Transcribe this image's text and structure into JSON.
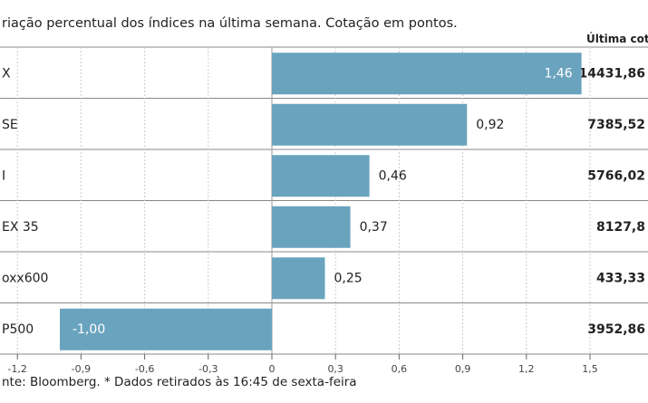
{
  "chart_data": {
    "type": "bar",
    "orientation": "horizontal",
    "title": "riação percentual dos índices na última semana. Cotação em pontos.",
    "last_quote_header": "Última cotaç",
    "categories": [
      "X",
      "SE",
      "I",
      "EX 35",
      "oxx600",
      "P500"
    ],
    "values": [
      1.46,
      0.92,
      0.46,
      0.37,
      0.25,
      -1.0
    ],
    "value_labels": [
      "1,46",
      "0,92",
      "0,46",
      "0,37",
      "0,25",
      "-1,00"
    ],
    "last_quotes": [
      "14431,86",
      "7385,52",
      "5766,02",
      "8127,8",
      "433,33",
      "3952,86"
    ],
    "xlim": [
      -1.2,
      1.5
    ],
    "ticks": [
      -1.2,
      -0.9,
      -0.6,
      -0.3,
      0,
      0.3,
      0.6,
      0.9,
      1.2,
      1.5
    ],
    "tick_labels": [
      "-1,2",
      "-0,9",
      "-0,6",
      "-0,3",
      "0",
      "0,3",
      "0,6",
      "0,9",
      "1,2",
      "1,5"
    ],
    "source": "nte: Bloomberg.  * Dados retirados às 16:45 de sexta-feira",
    "bar_color": "#6aa3be",
    "gridline_color": "#cccccc"
  }
}
